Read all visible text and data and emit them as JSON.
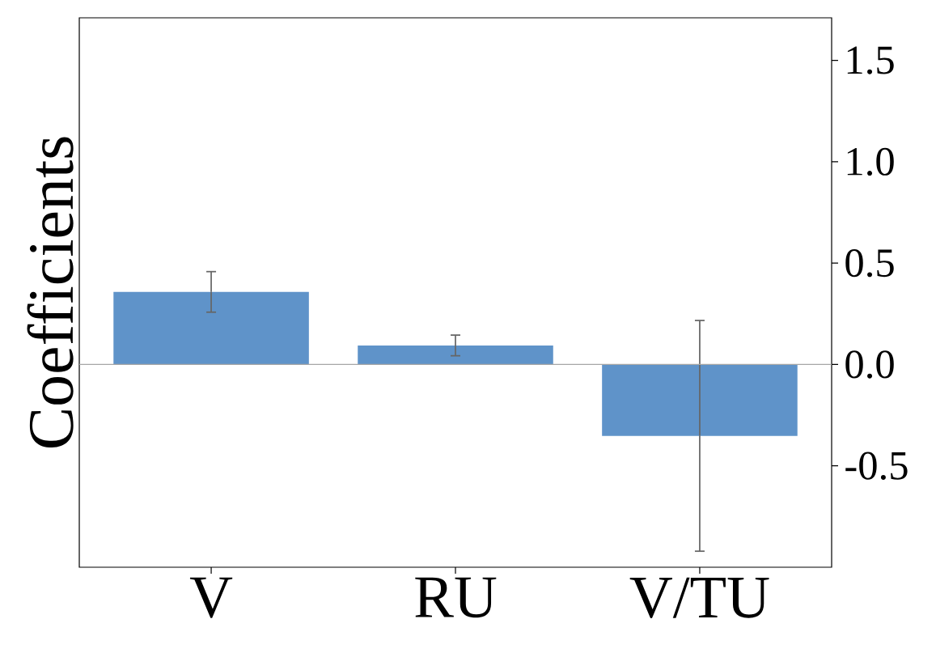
{
  "chart_data": {
    "type": "bar",
    "ylabel": "Coefficients",
    "categories": [
      "V",
      "RU",
      "V/TU"
    ],
    "values": [
      0.358,
      0.094,
      -0.352
    ],
    "errors": [
      0.1,
      0.051,
      0.569
    ],
    "color": "#5f93c9",
    "ylim": [
      -1.0,
      1.71
    ],
    "yticks": [
      {
        "value": -0.5,
        "label": "-0.5"
      },
      {
        "value": 0.0,
        "label": "0.0"
      },
      {
        "value": 0.5,
        "label": "0.5"
      },
      {
        "value": 1.0,
        "label": "1.0"
      },
      {
        "value": 1.5,
        "label": "1.5"
      }
    ],
    "ref_lines": [
      {
        "axis": "y",
        "value": 0,
        "color": "#a6a6a6"
      }
    ],
    "grid": false
  }
}
